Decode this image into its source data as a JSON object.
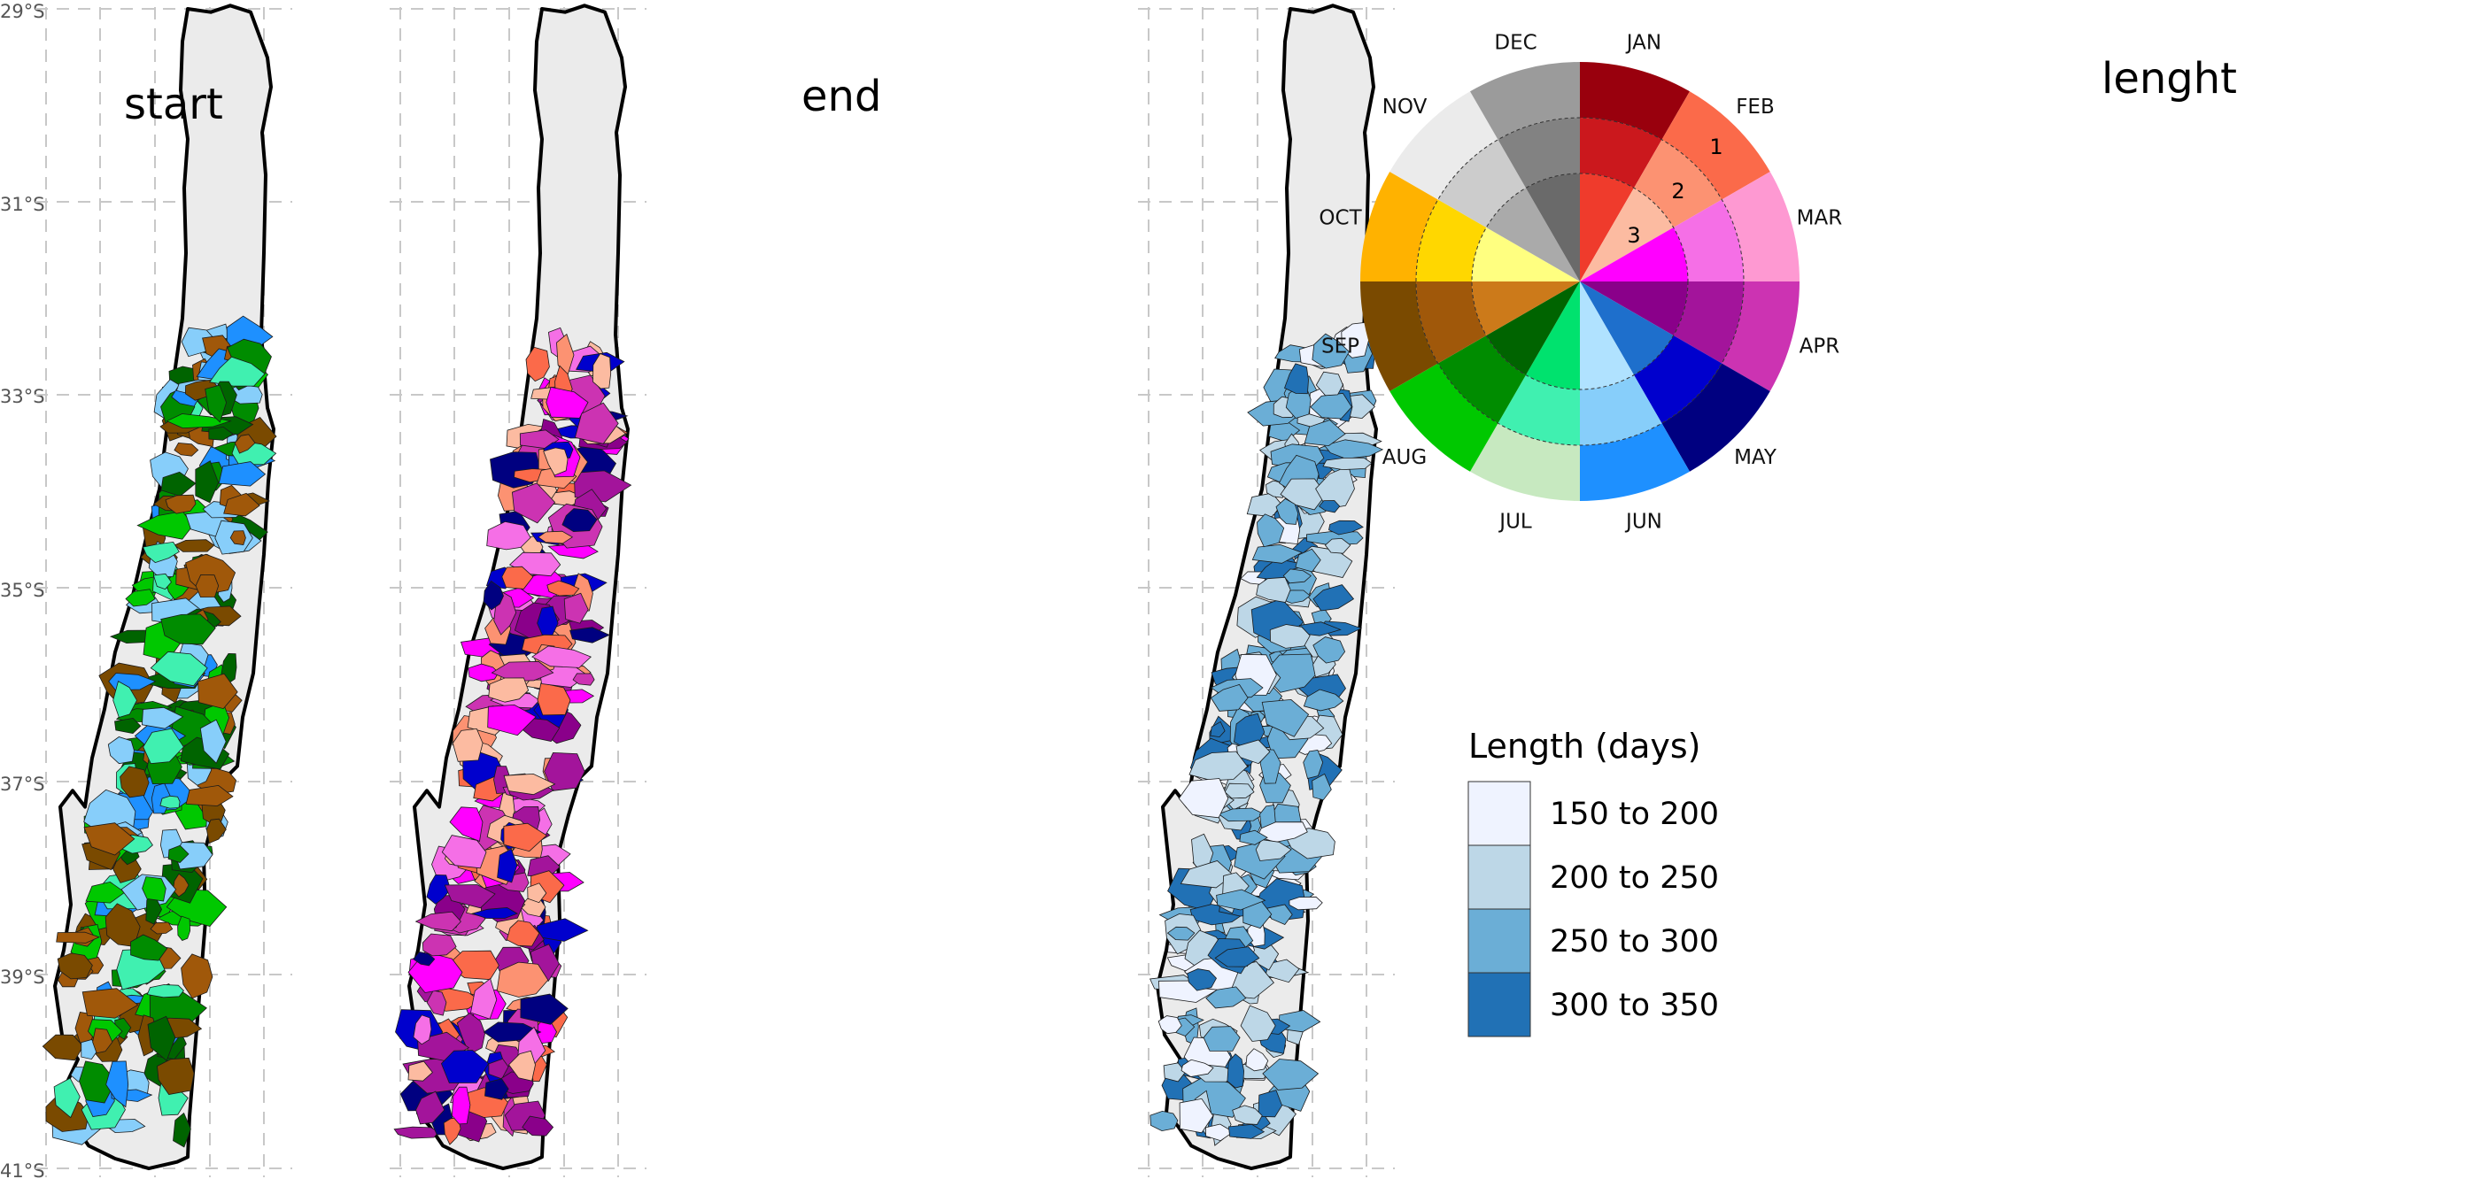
{
  "latitude_labels": [
    "29°S",
    "31°S",
    "33°S",
    "35°S",
    "37°S",
    "39°S",
    "41°S"
  ],
  "panels": [
    {
      "title": "start"
    },
    {
      "title": "end"
    },
    {
      "title": "lenght"
    }
  ],
  "month_wheel": {
    "months": [
      {
        "name": "JAN",
        "colors": [
          "#99000d",
          "#cb181d",
          "#ef3b2c"
        ]
      },
      {
        "name": "FEB",
        "colors": [
          "#fb6a4a",
          "#fc9272",
          "#fcbba1"
        ]
      },
      {
        "name": "MAR",
        "colors": [
          "#fe99d2",
          "#f56fe6",
          "#ff00ff"
        ]
      },
      {
        "name": "APR",
        "colors": [
          "#cc33b2",
          "#a3149b",
          "#8a008a"
        ]
      },
      {
        "name": "MAY",
        "colors": [
          "#000080",
          "#0000cd",
          "#1e6fcc"
        ]
      },
      {
        "name": "JUN",
        "colors": [
          "#1e90ff",
          "#87cefa",
          "#b0e2ff"
        ]
      },
      {
        "name": "JUL",
        "colors": [
          "#c7e9c0",
          "#40f0b0",
          "#00e26e"
        ]
      },
      {
        "name": "AUG",
        "colors": [
          "#00c800",
          "#008c00",
          "#006400"
        ]
      },
      {
        "name": "SEP",
        "colors": [
          "#7a4a00",
          "#a0580a",
          "#cc7a1a"
        ]
      },
      {
        "name": "OCT",
        "colors": [
          "#ffb200",
          "#ffd700",
          "#ffff80"
        ]
      },
      {
        "name": "NOV",
        "colors": [
          "#ebebeb",
          "#cccccc",
          "#aaaaaa"
        ]
      },
      {
        "name": "DEC",
        "colors": [
          "#9b9b9b",
          "#828282",
          "#6a6a6a"
        ]
      }
    ],
    "ring_labels": [
      "1",
      "2",
      "3"
    ]
  },
  "length_legend": {
    "title": "Length (days)",
    "items": [
      {
        "label": "150 to 200",
        "color": "#eff3ff"
      },
      {
        "label": "200 to 250",
        "color": "#bdd7e7"
      },
      {
        "label": "250 to 300",
        "color": "#6baed6"
      },
      {
        "label": "300 to 350",
        "color": "#2171b5"
      }
    ]
  },
  "map_style": {
    "land": "#ebebeb",
    "outline": "#000000",
    "grid": "#c8c8c8"
  }
}
